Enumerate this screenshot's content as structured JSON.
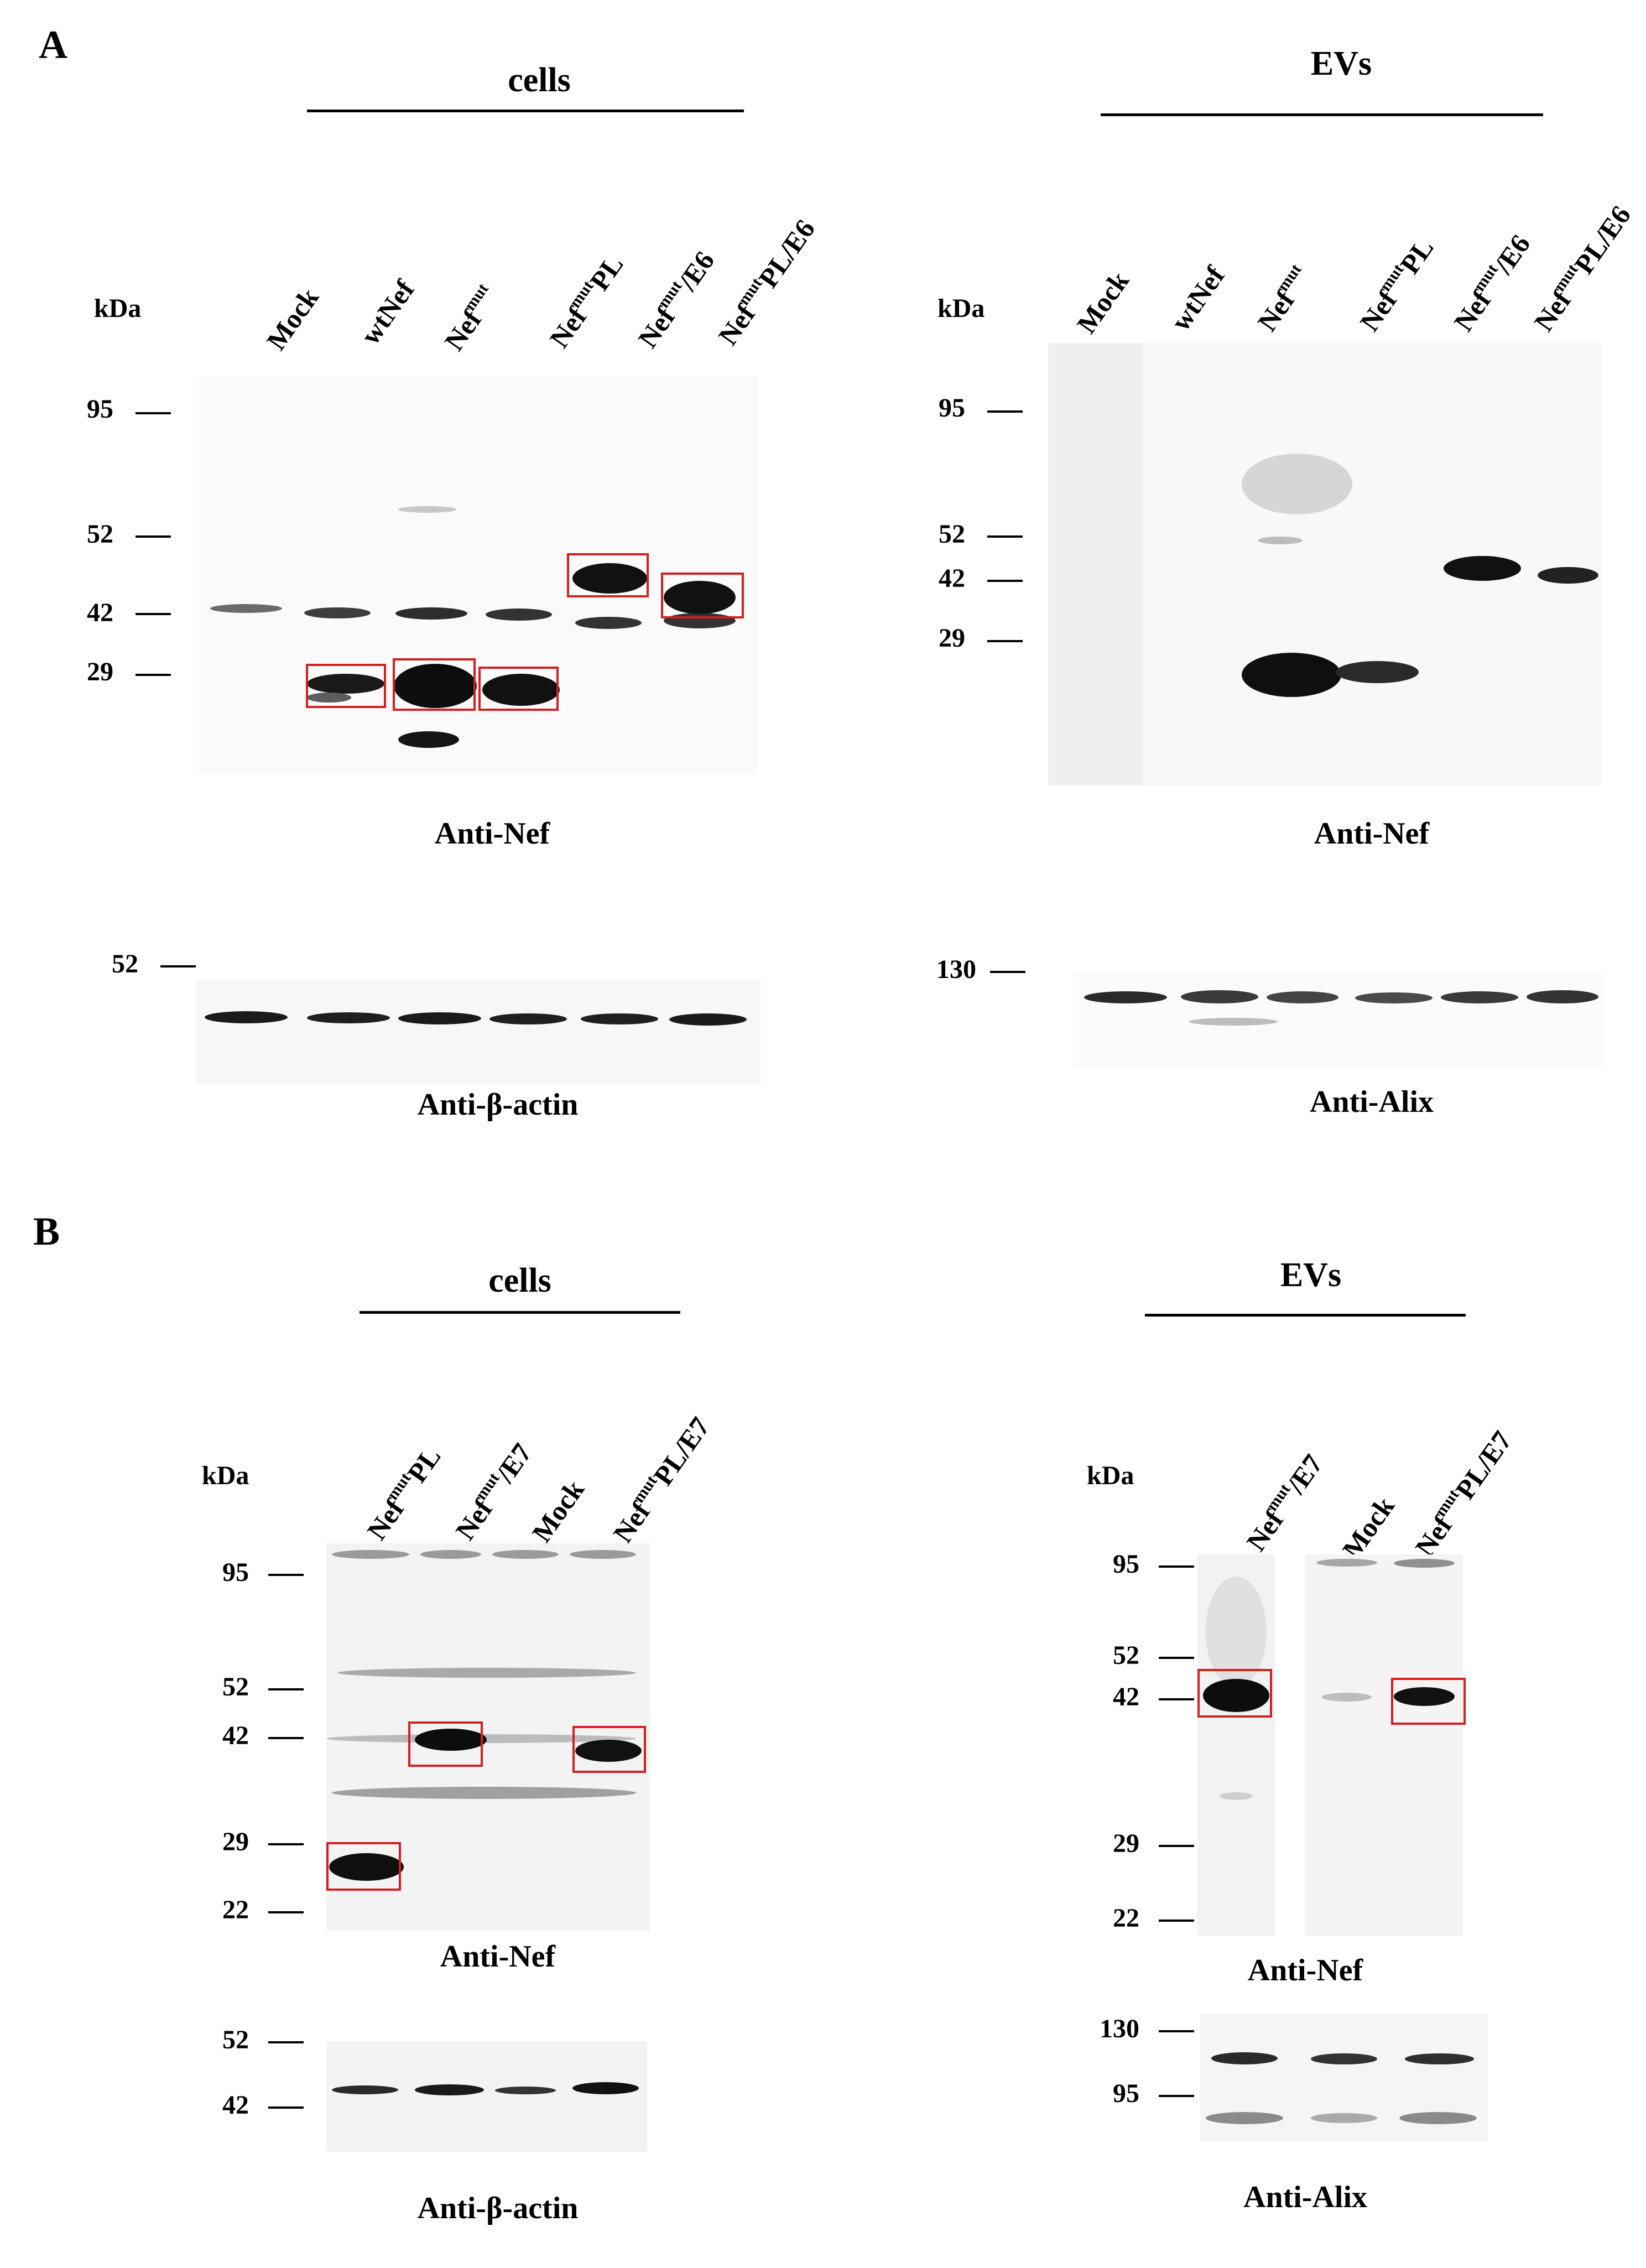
{
  "figure": {
    "panel_A": {
      "letter": "A",
      "cells": {
        "title": "cells",
        "kda_label": "kDa",
        "lanes": [
          {
            "label": "Mock"
          },
          {
            "pre": "wt",
            "label": "Nef"
          },
          {
            "label": "Nef",
            "sup": "mut"
          },
          {
            "label": "Nef",
            "sup": "mut",
            "post": "PL"
          },
          {
            "label": "Nef",
            "sup": "mut",
            "post": "/E6"
          },
          {
            "label": "Nef",
            "sup": "mut",
            "post": "PL/E6"
          }
        ],
        "nef_markers": [
          "95",
          "52",
          "42",
          "29"
        ],
        "nef_antibody": "Anti-Nef",
        "actin_marker": "52",
        "actin_antibody": "Anti-β-actin"
      },
      "evs": {
        "title": "EVs",
        "kda_label": "kDa",
        "lanes": [
          {
            "label": "Mock"
          },
          {
            "pre": "wt",
            "label": "Nef"
          },
          {
            "label": "Nef",
            "sup": "mut"
          },
          {
            "label": "Nef",
            "sup": "mut",
            "post": "PL"
          },
          {
            "label": "Nef",
            "sup": "mut",
            "post": "/E6"
          },
          {
            "label": "Nef",
            "sup": "mut",
            "post": "PL/E6"
          }
        ],
        "nef_markers": [
          "95",
          "52",
          "42",
          "29"
        ],
        "nef_antibody": "Anti-Nef",
        "alix_marker": "130",
        "alix_antibody": "Anti-Alix"
      }
    },
    "panel_B": {
      "letter": "B",
      "cells": {
        "title": "cells",
        "kda_label": "kDa",
        "lanes": [
          {
            "label": "Nef",
            "sup": "mut",
            "post": "PL"
          },
          {
            "label": "Nef",
            "sup": "mut",
            "post": "/E7"
          },
          {
            "label": "Mock"
          },
          {
            "label": "Nef",
            "sup": "mut",
            "post": "PL/E7"
          }
        ],
        "nef_markers": [
          "95",
          "52",
          "42",
          "29",
          "22"
        ],
        "nef_antibody": "Anti-Nef",
        "actin_markers": [
          "52",
          "42"
        ],
        "actin_antibody": "Anti-β-actin"
      },
      "evs": {
        "title": "EVs",
        "kda_label": "kDa",
        "lanes": [
          {
            "label": "Nef",
            "sup": "mut",
            "post": "/E7"
          },
          {
            "label": "Mock"
          },
          {
            "label": "Nef",
            "sup": "mut",
            "post": "PL/E7"
          }
        ],
        "nef_markers": [
          "95",
          "52",
          "42",
          "29",
          "22"
        ],
        "nef_antibody": "Anti-Nef",
        "alix_markers": [
          "130",
          "95"
        ],
        "alix_antibody": "Anti-Alix"
      }
    }
  },
  "colors": {
    "band": "#111111",
    "highlight_box": "#d21f1f",
    "membrane": "#f1f1f1"
  }
}
